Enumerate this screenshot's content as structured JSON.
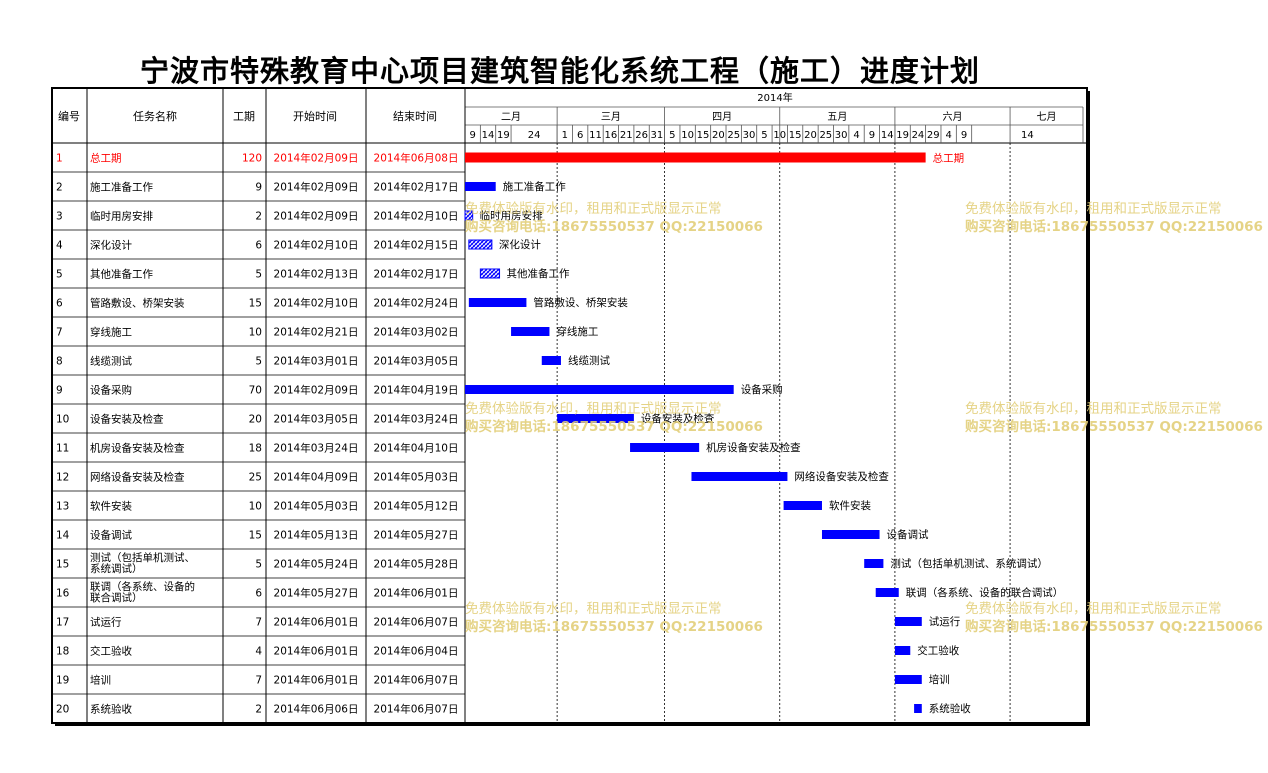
{
  "title": "宁波市特殊教育中心项目建筑智能化系统工程（施工）进度计划",
  "headers": {
    "id": "编号",
    "name": "任务名称",
    "duration": "工期",
    "start": "开始时间",
    "end": "结束时间",
    "year": "2014年"
  },
  "timeline": {
    "start_date": "2014-02-07",
    "end_date": "2014-07-18",
    "months": [
      {
        "label": "二月",
        "start": "2014-02-07",
        "end": "2014-03-03"
      },
      {
        "label": "三月",
        "start": "2014-03-03",
        "end": "2014-03-31"
      },
      {
        "label": "四月",
        "start": "2014-03-31",
        "end": "2014-04-30"
      },
      {
        "label": "五月",
        "start": "2014-04-30",
        "end": "2014-05-30"
      },
      {
        "label": "六月",
        "start": "2014-05-30",
        "end": "2014-06-29"
      },
      {
        "label": "七月",
        "start": "2014-06-29",
        "end": "2014-07-18"
      }
    ],
    "day_ticks": [
      {
        "label": "9",
        "date": "2014-02-07"
      },
      {
        "label": "14",
        "date": "2014-02-11"
      },
      {
        "label": "19",
        "date": "2014-02-15"
      },
      {
        "label": "24",
        "date": "2014-02-19"
      },
      {
        "label": "1",
        "date": "2014-03-03"
      },
      {
        "label": "6",
        "date": "2014-03-07"
      },
      {
        "label": "11",
        "date": "2014-03-11"
      },
      {
        "label": "16",
        "date": "2014-03-15"
      },
      {
        "label": "21",
        "date": "2014-03-19"
      },
      {
        "label": "26",
        "date": "2014-03-23"
      },
      {
        "label": "31",
        "date": "2014-03-27"
      },
      {
        "label": "5",
        "date": "2014-03-31"
      },
      {
        "label": "10",
        "date": "2014-04-04"
      },
      {
        "label": "15",
        "date": "2014-04-08"
      },
      {
        "label": "20",
        "date": "2014-04-12"
      },
      {
        "label": "25",
        "date": "2014-04-16"
      },
      {
        "label": "30",
        "date": "2014-04-20"
      },
      {
        "label": "5",
        "date": "2014-04-24"
      },
      {
        "label": "10",
        "date": "2014-04-28"
      },
      {
        "label": "15",
        "date": "2014-05-02"
      },
      {
        "label": "20",
        "date": "2014-05-06"
      },
      {
        "label": "25",
        "date": "2014-05-10"
      },
      {
        "label": "30",
        "date": "2014-05-14"
      },
      {
        "label": "4",
        "date": "2014-05-18"
      },
      {
        "label": "9",
        "date": "2014-05-22"
      },
      {
        "label": "14",
        "date": "2014-05-26"
      },
      {
        "label": "19",
        "date": "2014-05-30"
      },
      {
        "label": "24",
        "date": "2014-06-03"
      },
      {
        "label": "29",
        "date": "2014-06-07"
      },
      {
        "label": "4",
        "date": "2014-06-11"
      },
      {
        "label": "9",
        "date": "2014-06-15"
      },
      {
        "label": "14",
        "date": "2014-06-19"
      }
    ]
  },
  "colors": {
    "summary_bar": "#ff0000",
    "task_bar": "#0000ff",
    "hatched_bar": "#0000ff",
    "summary_text": "#ff0000",
    "watermark": "#e3cf7a"
  },
  "chart_data": {
    "type": "gantt",
    "tasks": [
      {
        "id": "1",
        "name": "总工期",
        "duration": "120",
        "start": "2014年02月09日",
        "end": "2014年06月08日",
        "bar_start": "2014-02-07",
        "bar_end": "2014-06-07",
        "style": "summary",
        "bar_label": "总工期"
      },
      {
        "id": "2",
        "name": "施工准备工作",
        "duration": "9",
        "start": "2014年02月09日",
        "end": "2014年02月17日",
        "bar_start": "2014-02-07",
        "bar_end": "2014-02-15",
        "style": "solid",
        "bar_label": "施工准备工作"
      },
      {
        "id": "3",
        "name": "临时用房安排",
        "duration": "2",
        "start": "2014年02月09日",
        "end": "2014年02月10日",
        "bar_start": "2014-02-07",
        "bar_end": "2014-02-09",
        "style": "hatched",
        "bar_label": "临时用房安排"
      },
      {
        "id": "4",
        "name": "深化设计",
        "duration": "6",
        "start": "2014年02月10日",
        "end": "2014年02月15日",
        "bar_start": "2014-02-08",
        "bar_end": "2014-02-14",
        "style": "hatched",
        "bar_label": "深化设计"
      },
      {
        "id": "5",
        "name": "其他准备工作",
        "duration": "5",
        "start": "2014年02月13日",
        "end": "2014年02月17日",
        "bar_start": "2014-02-11",
        "bar_end": "2014-02-16",
        "style": "hatched",
        "bar_label": "其他准备工作"
      },
      {
        "id": "6",
        "name": "管路敷设、桥架安装",
        "duration": "15",
        "start": "2014年02月10日",
        "end": "2014年02月24日",
        "bar_start": "2014-02-08",
        "bar_end": "2014-02-23",
        "style": "solid",
        "bar_label": "管路敷设、桥架安装"
      },
      {
        "id": "7",
        "name": "穿线施工",
        "duration": "10",
        "start": "2014年02月21日",
        "end": "2014年03月02日",
        "bar_start": "2014-02-19",
        "bar_end": "2014-03-01",
        "style": "solid",
        "bar_label": "穿线施工"
      },
      {
        "id": "8",
        "name": "线缆测试",
        "duration": "5",
        "start": "2014年03月01日",
        "end": "2014年03月05日",
        "bar_start": "2014-02-27",
        "bar_end": "2014-03-04",
        "style": "solid",
        "bar_label": "线缆测试"
      },
      {
        "id": "9",
        "name": "设备采购",
        "duration": "70",
        "start": "2014年02月09日",
        "end": "2014年04月19日",
        "bar_start": "2014-02-07",
        "bar_end": "2014-04-18",
        "style": "solid",
        "bar_label": "设备采购"
      },
      {
        "id": "10",
        "name": "设备安装及检查",
        "duration": "20",
        "start": "2014年03月05日",
        "end": "2014年03月24日",
        "bar_start": "2014-03-03",
        "bar_end": "2014-03-23",
        "style": "solid",
        "bar_label": "设备安装及检查"
      },
      {
        "id": "11",
        "name": "机房设备安装及检查",
        "duration": "18",
        "start": "2014年03月24日",
        "end": "2014年04月10日",
        "bar_start": "2014-03-22",
        "bar_end": "2014-04-09",
        "style": "solid",
        "bar_label": "机房设备安装及检查"
      },
      {
        "id": "12",
        "name": "网络设备安装及检查",
        "duration": "25",
        "start": "2014年04月09日",
        "end": "2014年05月03日",
        "bar_start": "2014-04-07",
        "bar_end": "2014-05-02",
        "style": "solid",
        "bar_label": "网络设备安装及检查"
      },
      {
        "id": "13",
        "name": "软件安装",
        "duration": "10",
        "start": "2014年05月03日",
        "end": "2014年05月12日",
        "bar_start": "2014-05-01",
        "bar_end": "2014-05-11",
        "style": "solid",
        "bar_label": "软件安装"
      },
      {
        "id": "14",
        "name": "设备调试",
        "duration": "15",
        "start": "2014年05月13日",
        "end": "2014年05月27日",
        "bar_start": "2014-05-11",
        "bar_end": "2014-05-26",
        "style": "solid",
        "bar_label": "设备调试"
      },
      {
        "id": "15",
        "name": "测试（包括单机测试、系统调试）",
        "duration": "5",
        "start": "2014年05月24日",
        "end": "2014年05月28日",
        "bar_start": "2014-05-22",
        "bar_end": "2014-05-27",
        "style": "solid",
        "bar_label": "测试（包括单机测试、系统调试）"
      },
      {
        "id": "16",
        "name": "联调（各系统、设备的联合调试）",
        "duration": "6",
        "start": "2014年05月27日",
        "end": "2014年06月01日",
        "bar_start": "2014-05-25",
        "bar_end": "2014-05-31",
        "style": "solid",
        "bar_label": "联调（各系统、设备的联合调试）"
      },
      {
        "id": "17",
        "name": "试运行",
        "duration": "7",
        "start": "2014年06月01日",
        "end": "2014年06月07日",
        "bar_start": "2014-05-30",
        "bar_end": "2014-06-06",
        "style": "solid",
        "bar_label": "试运行"
      },
      {
        "id": "18",
        "name": "交工验收",
        "duration": "4",
        "start": "2014年06月01日",
        "end": "2014年06月04日",
        "bar_start": "2014-05-30",
        "bar_end": "2014-06-03",
        "style": "solid",
        "bar_label": "交工验收"
      },
      {
        "id": "19",
        "name": "培训",
        "duration": "7",
        "start": "2014年06月01日",
        "end": "2014年06月07日",
        "bar_start": "2014-05-30",
        "bar_end": "2014-06-06",
        "style": "solid",
        "bar_label": "培训"
      },
      {
        "id": "20",
        "name": "系统验收",
        "duration": "2",
        "start": "2014年06月06日",
        "end": "2014年06月07日",
        "bar_start": "2014-06-04",
        "bar_end": "2014-06-06",
        "style": "solid",
        "bar_label": "系统验收"
      }
    ]
  },
  "watermark": {
    "line1": "免费体验版有水印，租用和正式版显示正常",
    "line2": "购买咨询电话:18675550537 QQ:22150066"
  }
}
